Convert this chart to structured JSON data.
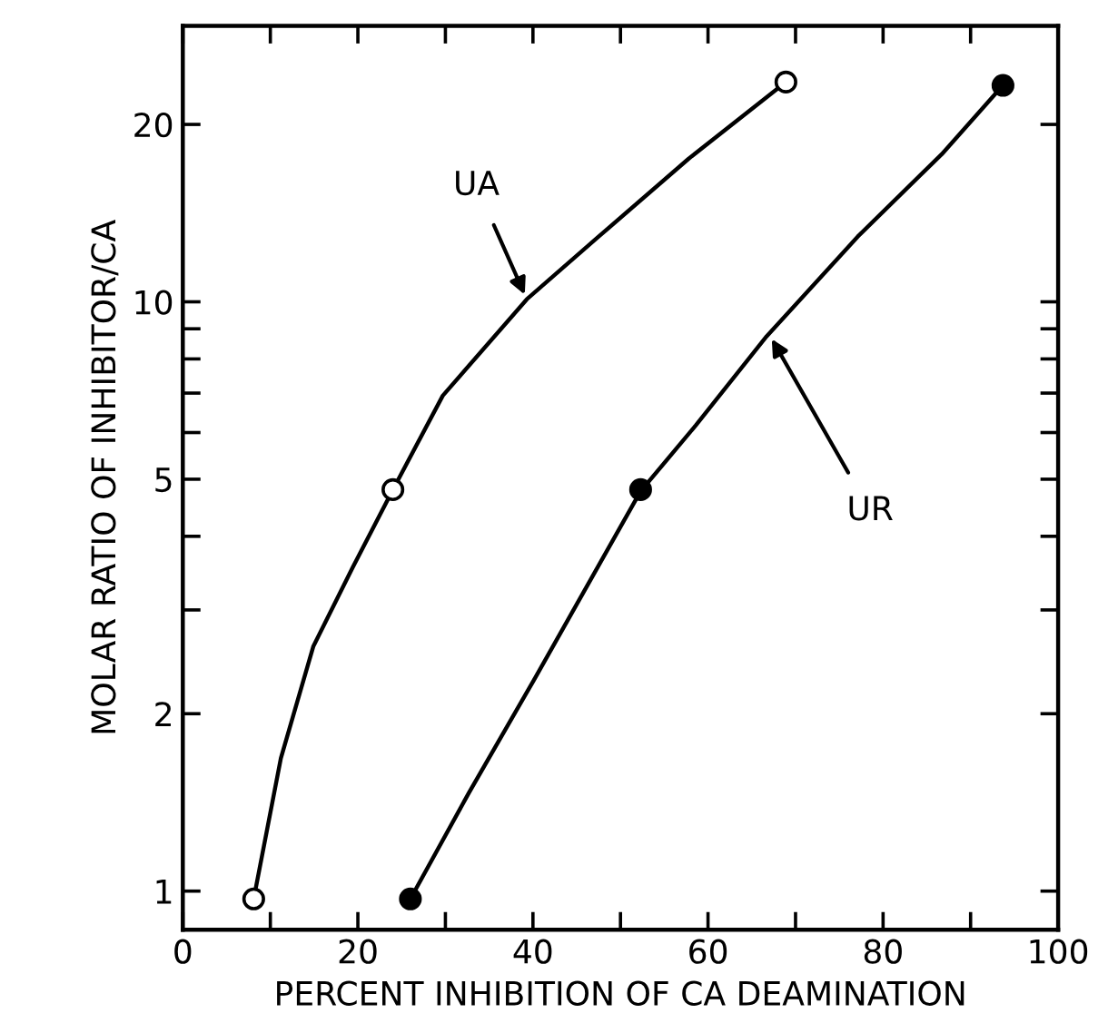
{
  "chart_data": {
    "type": "line",
    "xlabel": "PERCENT INHIBITION OF CA DEAMINATION",
    "ylabel": "MOLAR RATIO OF INHIBITOR/CA",
    "log": "y",
    "xlim": [
      0,
      100
    ],
    "ylim": [
      0.86,
      29.4
    ],
    "xticks": [
      0,
      {
        "value": 10,
        "label": null
      },
      20,
      {
        "value": 30,
        "label": null
      },
      40,
      {
        "value": 50,
        "label": null
      },
      60,
      {
        "value": 70,
        "label": null
      },
      80,
      {
        "value": 90,
        "label": null
      },
      100
    ],
    "yticks": [
      1,
      2,
      {
        "value": 3,
        "label": null
      },
      {
        "value": 4,
        "label": null
      },
      5,
      {
        "value": 6,
        "label": null
      },
      {
        "value": 7,
        "label": null
      },
      {
        "value": 8,
        "label": null
      },
      {
        "value": 9,
        "label": null
      },
      10,
      20
    ],
    "grid": false,
    "series": [
      {
        "color": "#000000",
        "marker": "none",
        "x": [
          8.1,
          11.2,
          14.9,
          19.4,
          24.0,
          29.7,
          39.3,
          47.5,
          57.8,
          68.9
        ],
        "values": [
          0.97,
          1.68,
          2.6,
          3.54,
          4.8,
          6.93,
          10.1,
          12.9,
          17.5,
          23.6
        ]
      },
      {
        "color": "#000000",
        "marker": "none",
        "x": [
          26.0,
          32.7,
          40.1,
          52.3,
          58.6,
          66.7,
          77.1,
          86.7,
          93.7
        ],
        "values": [
          0.97,
          1.47,
          2.28,
          4.77,
          6.17,
          8.74,
          12.9,
          17.8,
          23.3
        ]
      },
      {
        "type": "scatter",
        "color": "#ffffff",
        "marker": "circle",
        "x": [
          8.1,
          24.0,
          68.9
        ],
        "values": [
          0.97,
          4.8,
          23.6
        ]
      },
      {
        "type": "scatter",
        "color": "#000000",
        "marker": "circle",
        "x": [
          26.0,
          52.3,
          93.7
        ],
        "values": [
          0.97,
          4.8,
          23.3
        ]
      }
    ],
    "annotations": [
      {
        "text": "UA",
        "x": 39.3,
        "y": 10.1
      },
      {
        "text": "UR",
        "x": 67.0,
        "y": 8.8
      }
    ]
  }
}
